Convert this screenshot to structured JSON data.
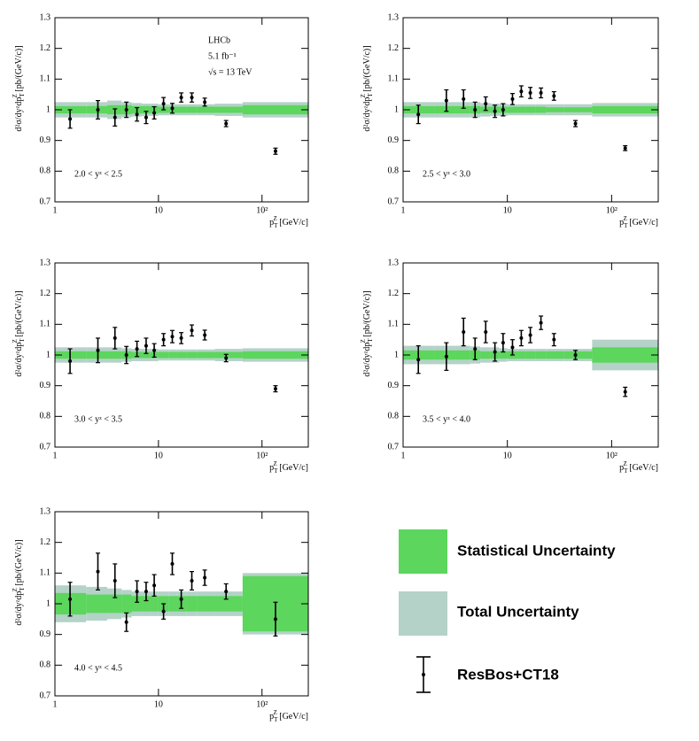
{
  "chart_data": [
    {
      "type": "errorbar",
      "region": "2.0 < yᶻ < 2.5",
      "x": [
        1.4,
        2.6,
        3.8,
        4.9,
        6.2,
        7.6,
        9.1,
        11.2,
        13.6,
        16.6,
        21,
        28,
        45,
        135
      ],
      "values": [
        0.97,
        1.0,
        0.975,
        1.0,
        0.985,
        0.975,
        0.99,
        1.02,
        1.005,
        1.04,
        1.04,
        1.025,
        0.955,
        0.865
      ],
      "errors": [
        0.03,
        0.03,
        0.028,
        0.025,
        0.022,
        0.02,
        0.02,
        0.02,
        0.016,
        0.015,
        0.015,
        0.013,
        0.01,
        0.01
      ],
      "bins": [
        1,
        2,
        3.2,
        4.4,
        5.5,
        6.9,
        8.3,
        10,
        12.5,
        15,
        18.5,
        23.5,
        35,
        65,
        280
      ],
      "reference": 1,
      "stat_err": [
        0.012,
        0.012,
        0.015,
        0.015,
        0.012,
        0.012,
        0.012,
        0.01,
        0.01,
        0.01,
        0.01,
        0.01,
        0.01,
        0.015
      ],
      "total_err": [
        0.025,
        0.025,
        0.03,
        0.025,
        0.022,
        0.02,
        0.02,
        0.018,
        0.018,
        0.018,
        0.018,
        0.018,
        0.02,
        0.025
      ],
      "xlim": [
        1,
        280
      ],
      "ylim": [
        0.7,
        1.3
      ],
      "log_x": true,
      "xticks": [
        1,
        10,
        {
          "value": 100,
          "label": "10²"
        }
      ],
      "yticks": [
        0.7,
        0.8,
        0.9,
        1,
        1.1,
        1.2,
        1.3
      ]
    },
    {
      "type": "errorbar",
      "region": "2.5 < yᶻ < 3.0",
      "x": [
        1.4,
        2.6,
        3.8,
        4.9,
        6.2,
        7.6,
        9.1,
        11.2,
        13.6,
        16.6,
        21,
        28,
        45,
        135
      ],
      "values": [
        0.985,
        1.03,
        1.035,
        1.0,
        1.02,
        0.995,
        1.0,
        1.035,
        1.06,
        1.055,
        1.055,
        1.045,
        0.955,
        0.875
      ],
      "errors": [
        0.03,
        0.035,
        0.03,
        0.025,
        0.022,
        0.02,
        0.02,
        0.018,
        0.018,
        0.018,
        0.016,
        0.014,
        0.01,
        0.008
      ],
      "bins": [
        1,
        2,
        3.2,
        4.4,
        5.5,
        6.9,
        8.3,
        10,
        12.5,
        15,
        18.5,
        23.5,
        35,
        65,
        280
      ],
      "reference": 1,
      "stat_err": [
        0.012,
        0.012,
        0.012,
        0.012,
        0.01,
        0.01,
        0.01,
        0.01,
        0.01,
        0.01,
        0.01,
        0.008,
        0.008,
        0.012
      ],
      "total_err": [
        0.025,
        0.025,
        0.025,
        0.025,
        0.022,
        0.02,
        0.02,
        0.018,
        0.018,
        0.018,
        0.018,
        0.018,
        0.018,
        0.022
      ],
      "xlim": [
        1,
        280
      ],
      "ylim": [
        0.7,
        1.3
      ],
      "log_x": true,
      "xticks": [
        1,
        10,
        {
          "value": 100,
          "label": "10²"
        }
      ],
      "yticks": [
        0.7,
        0.8,
        0.9,
        1,
        1.1,
        1.2,
        1.3
      ]
    },
    {
      "type": "errorbar",
      "region": "3.0 < yᶻ < 3.5",
      "x": [
        1.4,
        2.6,
        3.8,
        4.9,
        6.2,
        7.6,
        9.1,
        11.2,
        13.6,
        16.6,
        21,
        28,
        45,
        135
      ],
      "values": [
        0.98,
        1.015,
        1.055,
        1.0,
        1.02,
        1.03,
        1.015,
        1.05,
        1.06,
        1.055,
        1.08,
        1.065,
        0.99,
        0.89
      ],
      "errors": [
        0.04,
        0.04,
        0.035,
        0.028,
        0.025,
        0.025,
        0.022,
        0.02,
        0.02,
        0.018,
        0.018,
        0.016,
        0.012,
        0.01
      ],
      "bins": [
        1,
        2,
        3.2,
        4.4,
        5.5,
        6.9,
        8.3,
        10,
        12.5,
        15,
        18.5,
        23.5,
        35,
        65,
        280
      ],
      "reference": 1,
      "stat_err": [
        0.012,
        0.012,
        0.012,
        0.012,
        0.01,
        0.01,
        0.01,
        0.01,
        0.01,
        0.01,
        0.01,
        0.01,
        0.01,
        0.012
      ],
      "total_err": [
        0.025,
        0.025,
        0.025,
        0.022,
        0.02,
        0.02,
        0.02,
        0.018,
        0.018,
        0.018,
        0.018,
        0.018,
        0.02,
        0.022
      ],
      "xlim": [
        1,
        280
      ],
      "ylim": [
        0.7,
        1.3
      ],
      "log_x": true,
      "xticks": [
        1,
        10,
        {
          "value": 100,
          "label": "10²"
        }
      ],
      "yticks": [
        0.7,
        0.8,
        0.9,
        1,
        1.1,
        1.2,
        1.3
      ]
    },
    {
      "type": "errorbar",
      "region": "3.5 < yᶻ < 4.0",
      "x": [
        1.4,
        2.6,
        3.8,
        4.9,
        6.2,
        7.6,
        9.1,
        11.2,
        13.6,
        16.6,
        21,
        28,
        45,
        135
      ],
      "values": [
        0.985,
        0.995,
        1.075,
        1.02,
        1.075,
        1.01,
        1.04,
        1.025,
        1.055,
        1.065,
        1.105,
        1.05,
        1.0,
        0.88
      ],
      "errors": [
        0.045,
        0.045,
        0.045,
        0.035,
        0.035,
        0.03,
        0.03,
        0.025,
        0.025,
        0.025,
        0.022,
        0.02,
        0.015,
        0.015
      ],
      "bins": [
        1,
        2,
        3.2,
        4.4,
        5.5,
        6.9,
        8.3,
        10,
        12.5,
        15,
        18.5,
        23.5,
        35,
        65,
        280
      ],
      "reference": 1,
      "stat_err": [
        0.015,
        0.015,
        0.015,
        0.015,
        0.012,
        0.012,
        0.012,
        0.012,
        0.012,
        0.012,
        0.012,
        0.012,
        0.012,
        0.025
      ],
      "total_err": [
        0.03,
        0.03,
        0.03,
        0.028,
        0.025,
        0.025,
        0.022,
        0.02,
        0.02,
        0.02,
        0.02,
        0.02,
        0.02,
        0.05
      ],
      "xlim": [
        1,
        280
      ],
      "ylim": [
        0.7,
        1.3
      ],
      "log_x": true,
      "xticks": [
        1,
        10,
        {
          "value": 100,
          "label": "10²"
        }
      ],
      "yticks": [
        0.7,
        0.8,
        0.9,
        1,
        1.1,
        1.2,
        1.3
      ]
    },
    {
      "type": "errorbar",
      "region": "4.0 < yᶻ < 4.5",
      "x": [
        1.4,
        2.6,
        3.8,
        4.9,
        6.2,
        7.6,
        9.1,
        11.2,
        13.6,
        16.6,
        21,
        28,
        45,
        135
      ],
      "values": [
        1.015,
        1.105,
        1.075,
        0.94,
        1.04,
        1.04,
        1.06,
        0.975,
        1.13,
        1.015,
        1.075,
        1.085,
        1.04,
        0.95
      ],
      "errors": [
        0.055,
        0.06,
        0.055,
        0.03,
        0.035,
        0.03,
        0.035,
        0.025,
        0.035,
        0.03,
        0.03,
        0.025,
        0.025,
        0.055
      ],
      "bins": [
        1,
        2,
        3.2,
        4.4,
        5.5,
        6.9,
        8.3,
        10,
        12.5,
        15,
        18.5,
        23.5,
        35,
        65,
        280
      ],
      "reference": 1,
      "stat_err": [
        0.035,
        0.03,
        0.03,
        0.03,
        0.025,
        0.025,
        0.025,
        0.025,
        0.025,
        0.025,
        0.025,
        0.025,
        0.025,
        0.09
      ],
      "total_err": [
        0.06,
        0.055,
        0.05,
        0.045,
        0.04,
        0.04,
        0.04,
        0.04,
        0.04,
        0.04,
        0.04,
        0.04,
        0.04,
        0.1
      ],
      "xlim": [
        1,
        280
      ],
      "ylim": [
        0.7,
        1.3
      ],
      "log_x": true,
      "xticks": [
        1,
        10,
        {
          "value": 100,
          "label": "10²"
        }
      ],
      "yticks": [
        0.7,
        0.8,
        0.9,
        1,
        1.1,
        1.2,
        1.3
      ]
    }
  ],
  "ylabel": {
    "text": "d²σ/dyᶻdp",
    "sub": "T",
    "sup": "Z",
    "unit": " [pb/(GeV/c)]"
  },
  "xlabel": {
    "text": "p",
    "sub": "T",
    "sup": "Z",
    "unit": " [GeV/c]"
  },
  "annotation": [
    "LHCb",
    "5.1 fb⁻¹",
    "√s = 13 TeV"
  ],
  "legend": [
    {
      "name": "Statistical Uncertainty",
      "color": "#5cd65c"
    },
    {
      "name": "Total Uncertainty",
      "color": "#b4d2c8"
    },
    {
      "name": "ResBos+CT18",
      "color": "#000000"
    }
  ]
}
